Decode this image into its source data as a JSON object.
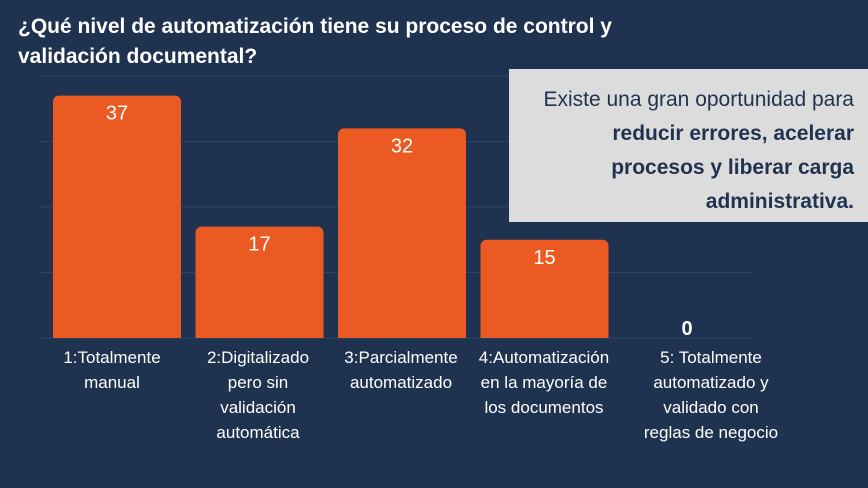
{
  "title": "¿Qué nivel de automatización tiene su proceso de control y validación documental?",
  "callout": {
    "plain": "Existe una gran oportunidad para ",
    "bold": "reducir errores, acelerar procesos y liberar carga administrativa."
  },
  "colors": {
    "background": "#1f3250",
    "bar": "#ec5a24",
    "callout_bg": "#dcdcdc"
  },
  "chart_data": {
    "type": "bar",
    "categories": [
      "1:Totalmente manual",
      "2:Digitalizado pero sin validación automática",
      "3:Parcialmente automatizado",
      "4:Automatización en la mayoría de los documentos",
      "5: Totalmente automatizado y validado con reglas de negocio"
    ],
    "values": [
      37,
      17,
      32,
      15,
      0
    ],
    "data_labels": [
      "37",
      "17",
      "32",
      "15",
      "0"
    ],
    "ylim": [
      0,
      40
    ],
    "grid": true,
    "legend": "none"
  }
}
